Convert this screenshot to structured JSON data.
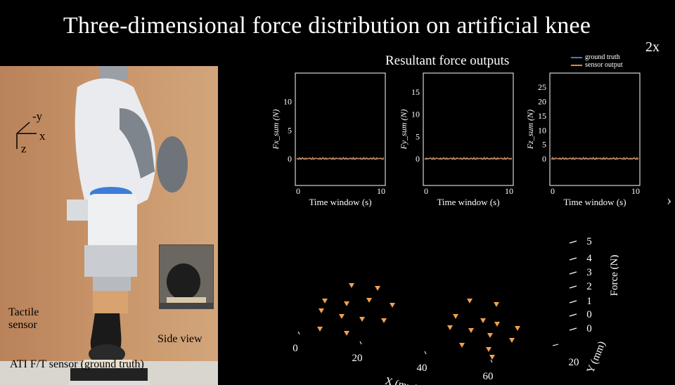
{
  "header": {
    "title": "Three-dimensional force distribution on artificial knee",
    "speed": "2x"
  },
  "photo": {
    "axes": {
      "y": "-y",
      "x": "x",
      "z": "z"
    },
    "labels": {
      "tactile": [
        "Tactile",
        "sensor"
      ],
      "side_view": "Side view",
      "ati": "ATI F/T sensor (ground truth)"
    }
  },
  "plots": {
    "title": "Resultant force outputs",
    "legend": [
      {
        "label": "ground truth",
        "color": "#3b7dd8"
      },
      {
        "label": "sensor output",
        "color": "#e8883a"
      }
    ],
    "charts": [
      {
        "ylabel": "Fx_sum (N)",
        "yticks": [
          "10",
          "5",
          "0"
        ],
        "xticks": [
          "0",
          "10"
        ],
        "xlabel": "Time window (s)",
        "ymax": 14,
        "level": 0.0
      },
      {
        "ylabel": "Fy_sum (N)",
        "yticks": [
          "15",
          "10",
          "5",
          "0"
        ],
        "xticks": [
          "0",
          "10"
        ],
        "xlabel": "Time window (s)",
        "ymax": 18,
        "level": 0.0
      },
      {
        "ylabel": "Fz_sum (N)",
        "yticks": [
          "25",
          "20",
          "15",
          "10",
          "5",
          "0"
        ],
        "xticks": [
          "0",
          "10"
        ],
        "xlabel": "Time window (s)",
        "ymax": 28,
        "level": 0.0
      }
    ]
  },
  "scatter": {
    "x_ticks": [
      "0",
      "20",
      "40",
      "60"
    ],
    "x_label": "X (mm)",
    "y_ticks": [
      "20"
    ],
    "y_label": "Y (mm)",
    "force_ticks": [
      "5",
      "4",
      "3",
      "2",
      "1",
      "0",
      "0"
    ],
    "force_label": "Force (N)",
    "marker_color": "#f0a050"
  },
  "nav": {
    "next": "›"
  }
}
